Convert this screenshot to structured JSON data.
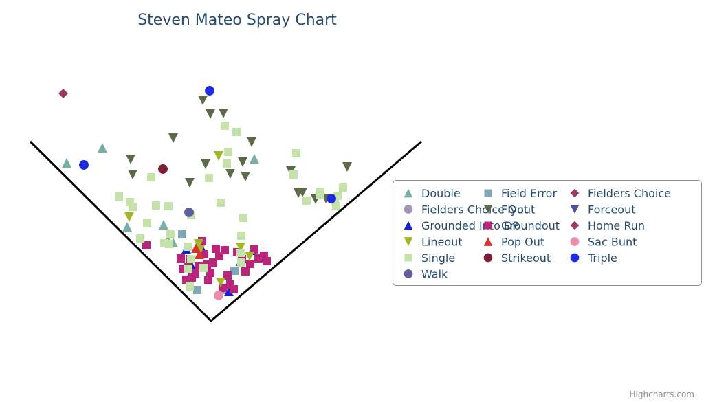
{
  "chart_data": {
    "type": "scatter",
    "title": "Steven Mateo Spray Chart",
    "credits": "Highcharts.com",
    "legend_position": "right",
    "field_lines": true,
    "grid": false,
    "xlim": [
      -250,
      250
    ],
    "ylim": [
      0,
      350
    ],
    "series": [
      {
        "name": "Double",
        "symbol": "triangle",
        "color": "#76b0a8",
        "points": [
          [
            -210,
            230
          ],
          [
            -158,
            252
          ],
          [
            -122,
            137
          ],
          [
            -69,
            140
          ],
          [
            -55,
            114
          ],
          [
            63,
            236
          ],
          [
            -63,
            118
          ]
        ]
      },
      {
        "name": "Field Error",
        "symbol": "square",
        "color": "#7fa7b8",
        "points": [
          [
            -42,
            126
          ],
          [
            -20,
            45
          ],
          [
            22,
            45
          ],
          [
            34,
            73
          ]
        ]
      },
      {
        "name": "Fielders Choice",
        "symbol": "diamond",
        "color": "#9a3a61",
        "points": [
          [
            -215,
            331
          ]
        ]
      },
      {
        "name": "Fielders Choice Out",
        "symbol": "circle",
        "color": "#a393b7",
        "points": []
      },
      {
        "name": "Flyout",
        "symbol": "triangle-down",
        "color": "#5d6a4a",
        "points": [
          [
            -117,
            235
          ],
          [
            -114,
            213
          ],
          [
            -55,
            266
          ],
          [
            -31,
            201
          ],
          [
            -12,
            321
          ],
          [
            -8,
            228
          ],
          [
            -1,
            301
          ],
          [
            18,
            302
          ],
          [
            28,
            214
          ],
          [
            46,
            231
          ],
          [
            50,
            210
          ],
          [
            59,
            260
          ],
          [
            116,
            218
          ],
          [
            127,
            186
          ],
          [
            133,
            187
          ],
          [
            152,
            177
          ],
          [
            167,
            178
          ],
          [
            198,
            224
          ]
        ]
      },
      {
        "name": "Forceout",
        "symbol": "triangle-down",
        "color": "#4b4fa0",
        "points": []
      },
      {
        "name": "Grounded Into DP",
        "symbol": "triangle",
        "color": "#1a1fdc",
        "points": [
          [
            -36,
            105
          ],
          [
            -28,
            80
          ],
          [
            -14,
            107
          ],
          [
            26,
            43
          ],
          [
            43,
            87
          ],
          [
            60,
            103
          ]
        ]
      },
      {
        "name": "Groundout",
        "symbol": "square",
        "color": "#b8257a",
        "points": [
          [
            -94,
            110
          ],
          [
            -44,
            91
          ],
          [
            -41,
            76
          ],
          [
            -36,
            60
          ],
          [
            -34,
            78
          ],
          [
            -31,
            90
          ],
          [
            -28,
            63
          ],
          [
            -23,
            69
          ],
          [
            -18,
            80
          ],
          [
            -13,
            116
          ],
          [
            -10,
            97
          ],
          [
            -6,
            82
          ],
          [
            -4,
            59
          ],
          [
            -1,
            70
          ],
          [
            3,
            85
          ],
          [
            7,
            105
          ],
          [
            12,
            94
          ],
          [
            17,
            48
          ],
          [
            20,
            103
          ],
          [
            24,
            66
          ],
          [
            28,
            53
          ],
          [
            33,
            46
          ],
          [
            38,
            100
          ],
          [
            45,
            90
          ],
          [
            50,
            72
          ],
          [
            57,
            83
          ],
          [
            63,
            104
          ],
          [
            69,
            91
          ],
          [
            77,
            95
          ],
          [
            81,
            87
          ]
        ]
      },
      {
        "name": "Home Run",
        "symbol": "diamond",
        "color": "#9a3a61",
        "points": []
      },
      {
        "name": "Lineout",
        "symbol": "triangle-down",
        "color": "#a5b624",
        "points": [
          [
            -119,
            151
          ],
          [
            -18,
            112
          ],
          [
            -16,
            103
          ],
          [
            11,
            240
          ],
          [
            14,
            56
          ],
          [
            43,
            107
          ],
          [
            56,
            94
          ]
        ]
      },
      {
        "name": "Pop Out",
        "symbol": "triangle",
        "color": "#d7322c",
        "points": [
          [
            -22,
            106
          ],
          [
            -17,
            97
          ]
        ]
      },
      {
        "name": "Sac Bunt",
        "symbol": "circle",
        "color": "#ea8fab",
        "points": [
          [
            11,
            37
          ]
        ]
      },
      {
        "name": "Single",
        "symbol": "square",
        "color": "#c5e3a9",
        "points": [
          [
            -134,
            181
          ],
          [
            -118,
            173
          ],
          [
            -114,
            166
          ],
          [
            -87,
            209
          ],
          [
            -80,
            168
          ],
          [
            -93,
            142
          ],
          [
            -103,
            120
          ],
          [
            -59,
            126
          ],
          [
            -61,
            112
          ],
          [
            -68,
            113
          ],
          [
            -62,
            167
          ],
          [
            -29,
            154
          ],
          [
            -33,
            108
          ],
          [
            -29,
            90
          ],
          [
            -33,
            76
          ],
          [
            -11,
            77
          ],
          [
            -3,
            208
          ],
          [
            14,
            172
          ],
          [
            23,
            229
          ],
          [
            25,
            246
          ],
          [
            20,
            284
          ],
          [
            37,
            275
          ],
          [
            43,
            99
          ],
          [
            44,
            85
          ],
          [
            44,
            124
          ],
          [
            47,
            150
          ],
          [
            124,
            244
          ],
          [
            120,
            213
          ],
          [
            139,
            175
          ],
          [
            158,
            183
          ],
          [
            184,
            182
          ],
          [
            182,
            167
          ],
          [
            180,
            175
          ],
          [
            159,
            188
          ],
          [
            192,
            194
          ],
          [
            -31,
            50
          ]
        ]
      },
      {
        "name": "Strikeout",
        "symbol": "circle",
        "color": "#7a1f36",
        "points": [
          [
            -70,
            221
          ]
        ]
      },
      {
        "name": "Triple",
        "symbol": "circle",
        "color": "#1f2be0",
        "points": [
          [
            -185,
            227
          ],
          [
            -2,
            335
          ],
          [
            175,
            178
          ]
        ]
      },
      {
        "name": "Walk",
        "symbol": "circle",
        "color": "#5e5d9e",
        "points": [
          [
            -32,
            158
          ]
        ]
      }
    ]
  }
}
